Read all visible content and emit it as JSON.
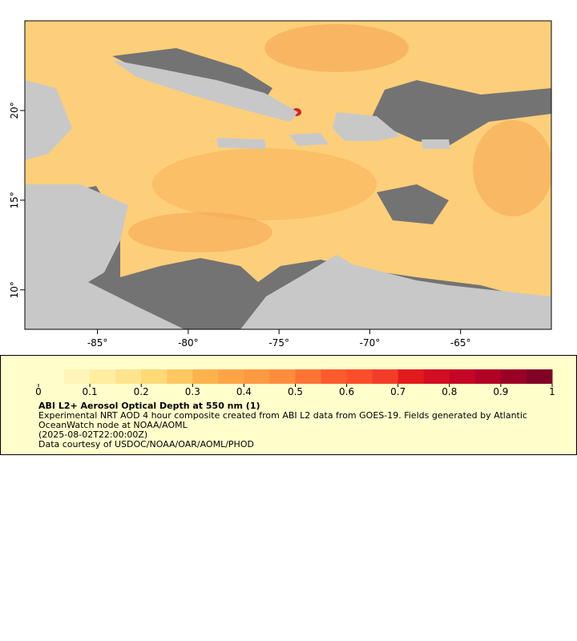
{
  "map": {
    "x_axis": {
      "lim": [
        -89,
        -60
      ],
      "ticks": [
        {
          "value": -85,
          "label": "-85°"
        },
        {
          "value": -80,
          "label": "-80°"
        },
        {
          "value": -75,
          "label": "-75°"
        },
        {
          "value": -70,
          "label": "-70°"
        },
        {
          "value": -65,
          "label": "-65°"
        }
      ]
    },
    "y_axis": {
      "lim": [
        7.8,
        25
      ],
      "ticks": [
        {
          "value": 10,
          "label": "10°"
        },
        {
          "value": 15,
          "label": "15°"
        },
        {
          "value": 20,
          "label": "20°"
        }
      ]
    }
  },
  "colorbar": {
    "lim": [
      0,
      1
    ],
    "ticks": [
      0,
      0.1,
      0.2,
      0.3,
      0.4,
      0.5,
      0.6,
      0.7,
      0.8,
      0.9,
      1
    ],
    "colormap": [
      "#ffffcc",
      "#fff5b8",
      "#ffeda0",
      "#fee48c",
      "#fed976",
      "#fec762",
      "#feb24c",
      "#fea446",
      "#fd9a41",
      "#fd8d3c",
      "#fc7434",
      "#fc5b2e",
      "#fc4e2a",
      "#f23d26",
      "#e31a1c",
      "#d40d22",
      "#c40525",
      "#b10026",
      "#9a0026",
      "#800026"
    ]
  },
  "legend": {
    "title": "ABI L2+ Aerosol Optical Depth at 550 nm (1)",
    "description": "Experimental NRT AOD 4 hour composite created from ABI L2 data from GOES-19. Fields generated by Atlantic OceanWatch node at NOAA/AOML",
    "time": "(2025-08-02T22:00:00Z)",
    "credit": "Data courtesy of USDOC/NOAA/OAR/AOML/PHOD"
  }
}
